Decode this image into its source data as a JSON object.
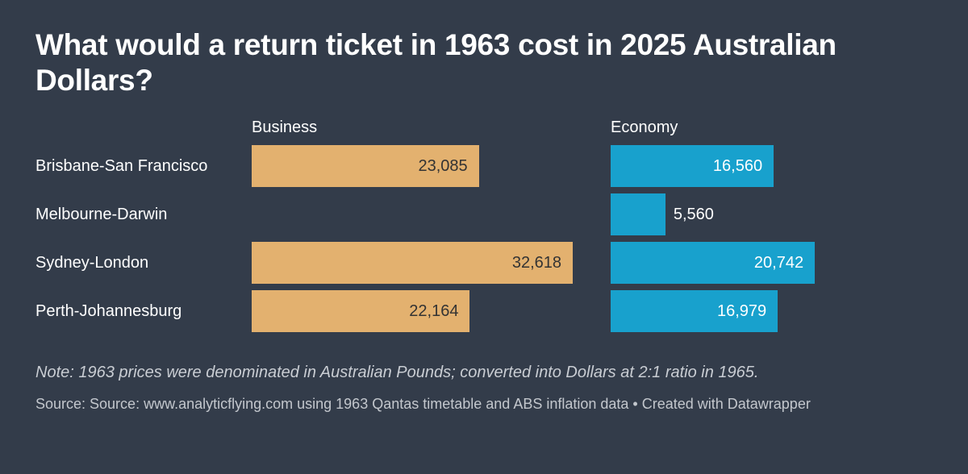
{
  "chart_data": {
    "type": "bar",
    "title": "What would a return ticket in 1963 cost in 2025 Australian Dollars?",
    "categories": [
      "Brisbane-San Francisco",
      "Melbourne-Darwin",
      "Sydney-London",
      "Perth-Johannesburg"
    ],
    "series": [
      {
        "name": "Business",
        "values": [
          23085,
          null,
          32618,
          22164
        ],
        "labels": [
          "23,085",
          "",
          "32,618",
          "22,164"
        ],
        "color": "#e3b16f"
      },
      {
        "name": "Economy",
        "values": [
          16560,
          5560,
          20742,
          16979
        ],
        "labels": [
          "16,560",
          "5,560",
          "20,742",
          "16,979"
        ],
        "color": "#18a1cd"
      }
    ],
    "xlim": [
      0,
      32618
    ],
    "note": "Note: 1963 prices were denominated in Australian Pounds; converted into Dollars at 2:1 ratio in 1965.",
    "source": "Source: Source: www.analyticflying.com using 1963 Qantas timetable and ABS inflation data • Created with Datawrapper"
  }
}
